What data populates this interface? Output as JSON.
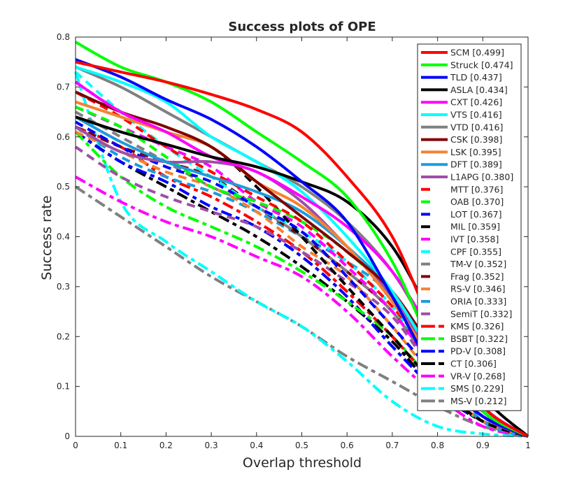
{
  "chart_data": {
    "type": "line",
    "title": "Success plots of OPE",
    "xlabel": "Overlap threshold",
    "ylabel": "Success rate",
    "xlim": [
      0,
      1
    ],
    "ylim": [
      0,
      0.8
    ],
    "xticks": [
      "0",
      "0.1",
      "0.2",
      "0.3",
      "0.4",
      "0.5",
      "0.6",
      "0.7",
      "0.8",
      "0.9",
      "1"
    ],
    "yticks": [
      "0",
      "0.1",
      "0.2",
      "0.3",
      "0.4",
      "0.5",
      "0.6",
      "0.7",
      "0.8"
    ],
    "grid": false,
    "legend_position": "top-right",
    "x": [
      0,
      0.1,
      0.2,
      0.3,
      0.4,
      0.5,
      0.6,
      0.7,
      0.8,
      0.9,
      1.0
    ],
    "series": [
      {
        "name": "SCM [0.499]",
        "color": "#ff0000",
        "style": "solid",
        "values": [
          0.75,
          0.73,
          0.71,
          0.685,
          0.655,
          0.61,
          0.52,
          0.4,
          0.2,
          0.06,
          0
        ]
      },
      {
        "name": "Struck [0.474]",
        "color": "#00ff00",
        "style": "solid",
        "values": [
          0.79,
          0.74,
          0.71,
          0.67,
          0.61,
          0.55,
          0.48,
          0.35,
          0.16,
          0.05,
          0
        ]
      },
      {
        "name": "TLD [0.437]",
        "color": "#0000ff",
        "style": "solid",
        "values": [
          0.755,
          0.72,
          0.675,
          0.635,
          0.58,
          0.51,
          0.43,
          0.28,
          0.12,
          0.04,
          0
        ]
      },
      {
        "name": "ASLA [0.434]",
        "color": "#000000",
        "style": "solid",
        "values": [
          0.64,
          0.61,
          0.585,
          0.56,
          0.54,
          0.51,
          0.47,
          0.38,
          0.22,
          0.08,
          0
        ]
      },
      {
        "name": "CXT [0.426]",
        "color": "#ff00ff",
        "style": "solid",
        "values": [
          0.71,
          0.65,
          0.61,
          0.56,
          0.53,
          0.48,
          0.42,
          0.33,
          0.19,
          0.06,
          0
        ]
      },
      {
        "name": "VTS [0.416]",
        "color": "#00ffff",
        "style": "solid",
        "values": [
          0.74,
          0.71,
          0.67,
          0.6,
          0.55,
          0.49,
          0.4,
          0.29,
          0.15,
          0.05,
          0
        ]
      },
      {
        "name": "VTD [0.416]",
        "color": "#808080",
        "style": "solid",
        "values": [
          0.74,
          0.7,
          0.65,
          0.6,
          0.55,
          0.5,
          0.43,
          0.33,
          0.18,
          0.05,
          0
        ]
      },
      {
        "name": "CSK [0.398]",
        "color": "#800000",
        "style": "solid",
        "values": [
          0.69,
          0.65,
          0.62,
          0.58,
          0.51,
          0.44,
          0.37,
          0.29,
          0.16,
          0.05,
          0
        ]
      },
      {
        "name": "LSK [0.395]",
        "color": "#f58231",
        "style": "solid",
        "values": [
          0.67,
          0.64,
          0.61,
          0.58,
          0.51,
          0.46,
          0.38,
          0.27,
          0.14,
          0.05,
          0
        ]
      },
      {
        "name": "DFT [0.389]",
        "color": "#1e9bdc",
        "style": "solid",
        "values": [
          0.64,
          0.59,
          0.55,
          0.52,
          0.49,
          0.45,
          0.38,
          0.29,
          0.16,
          0.05,
          0
        ]
      },
      {
        "name": "L1APG [0.380]",
        "color": "#9e4fa6",
        "style": "solid",
        "values": [
          0.62,
          0.57,
          0.55,
          0.55,
          0.53,
          0.47,
          0.38,
          0.28,
          0.14,
          0.04,
          0
        ]
      },
      {
        "name": "MTT [0.376]",
        "color": "#ff0000",
        "style": "dash",
        "values": [
          0.69,
          0.64,
          0.58,
          0.53,
          0.48,
          0.43,
          0.35,
          0.26,
          0.15,
          0.05,
          0
        ]
      },
      {
        "name": "OAB [0.370]",
        "color": "#00ff00",
        "style": "dash",
        "values": [
          0.66,
          0.62,
          0.56,
          0.5,
          0.47,
          0.43,
          0.37,
          0.28,
          0.13,
          0.04,
          0
        ]
      },
      {
        "name": "LOT [0.367]",
        "color": "#0000ff",
        "style": "dash",
        "values": [
          0.63,
          0.58,
          0.54,
          0.51,
          0.46,
          0.41,
          0.32,
          0.22,
          0.12,
          0.04,
          0
        ]
      },
      {
        "name": "MIL [0.359]",
        "color": "#000000",
        "style": "dash",
        "values": [
          0.71,
          0.65,
          0.61,
          0.58,
          0.5,
          0.4,
          0.3,
          0.2,
          0.1,
          0.03,
          0
        ]
      },
      {
        "name": "IVT [0.358]",
        "color": "#ff00ff",
        "style": "dash",
        "values": [
          0.66,
          0.62,
          0.58,
          0.54,
          0.47,
          0.42,
          0.34,
          0.25,
          0.13,
          0.04,
          0
        ]
      },
      {
        "name": "CPF [0.355]",
        "color": "#00ffff",
        "style": "dash",
        "values": [
          0.73,
          0.65,
          0.58,
          0.52,
          0.46,
          0.41,
          0.35,
          0.26,
          0.14,
          0.04,
          0
        ]
      },
      {
        "name": "TM-V [0.352]",
        "color": "#808080",
        "style": "dash",
        "values": [
          0.65,
          0.6,
          0.55,
          0.5,
          0.46,
          0.4,
          0.33,
          0.25,
          0.13,
          0.04,
          0
        ]
      },
      {
        "name": "Frag [0.352]",
        "color": "#800000",
        "style": "dash",
        "values": [
          0.62,
          0.58,
          0.55,
          0.52,
          0.46,
          0.4,
          0.33,
          0.25,
          0.13,
          0.04,
          0
        ]
      },
      {
        "name": "RS-V [0.346]",
        "color": "#f58231",
        "style": "dash",
        "values": [
          0.61,
          0.57,
          0.53,
          0.5,
          0.45,
          0.38,
          0.32,
          0.22,
          0.11,
          0.03,
          0
        ]
      },
      {
        "name": "ORIA [0.333]",
        "color": "#1e9bdc",
        "style": "dash",
        "values": [
          0.62,
          0.56,
          0.52,
          0.49,
          0.45,
          0.4,
          0.35,
          0.28,
          0.14,
          0.03,
          0
        ]
      },
      {
        "name": "SemiT [0.332]",
        "color": "#9e4fa6",
        "style": "dash",
        "values": [
          0.58,
          0.52,
          0.48,
          0.45,
          0.42,
          0.37,
          0.31,
          0.24,
          0.12,
          0.03,
          0
        ]
      },
      {
        "name": "KMS [0.326]",
        "color": "#ff0000",
        "style": "dashdot",
        "values": [
          0.62,
          0.58,
          0.52,
          0.48,
          0.43,
          0.37,
          0.29,
          0.2,
          0.1,
          0.03,
          0
        ]
      },
      {
        "name": "BSBT [0.322]",
        "color": "#00ff00",
        "style": "dashdot",
        "values": [
          0.61,
          0.52,
          0.46,
          0.42,
          0.38,
          0.33,
          0.27,
          0.2,
          0.1,
          0.03,
          0
        ]
      },
      {
        "name": "PD-V [0.308]",
        "color": "#0000ff",
        "style": "dashdot",
        "values": [
          0.61,
          0.55,
          0.51,
          0.46,
          0.42,
          0.36,
          0.28,
          0.18,
          0.09,
          0.03,
          0
        ]
      },
      {
        "name": "CT [0.306]",
        "color": "#000000",
        "style": "dashdot",
        "values": [
          0.61,
          0.55,
          0.5,
          0.45,
          0.4,
          0.34,
          0.27,
          0.19,
          0.09,
          0.03,
          0
        ]
      },
      {
        "name": "VR-V [0.268]",
        "color": "#ff00ff",
        "style": "dashdot",
        "values": [
          0.52,
          0.47,
          0.43,
          0.4,
          0.36,
          0.32,
          0.25,
          0.16,
          0.08,
          0.02,
          0
        ]
      },
      {
        "name": "SMS [0.229]",
        "color": "#00ffff",
        "style": "dashdot",
        "values": [
          0.73,
          0.47,
          0.39,
          0.33,
          0.27,
          0.22,
          0.15,
          0.07,
          0.02,
          0.005,
          0
        ]
      },
      {
        "name": "MS-V [0.212]",
        "color": "#808080",
        "style": "dashdot",
        "values": [
          0.5,
          0.44,
          0.38,
          0.32,
          0.27,
          0.22,
          0.16,
          0.11,
          0.06,
          0.02,
          0
        ]
      }
    ]
  }
}
